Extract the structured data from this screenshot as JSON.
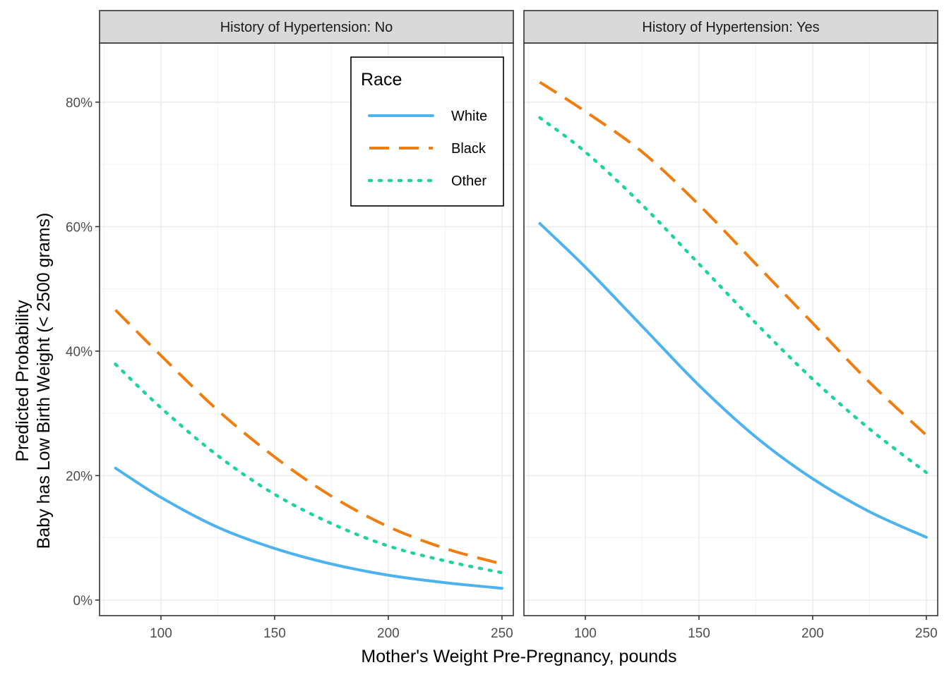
{
  "chart_data": {
    "type": "line",
    "xlabel": "Mother's Weight Pre-Pregnancy, pounds",
    "ylabel_lines": [
      "Predicted Probability",
      "Baby has Low Birth Weight (< 2500 grams)"
    ],
    "xlim": [
      73,
      255
    ],
    "ylim": [
      -0.025,
      0.895
    ],
    "x_ticks": [
      100,
      150,
      200,
      250
    ],
    "x_minor": [
      75,
      125,
      175,
      225
    ],
    "y_ticks": [
      0,
      0.2,
      0.4,
      0.6,
      0.8
    ],
    "y_tick_labels": [
      "0%",
      "20%",
      "40%",
      "60%",
      "80%"
    ],
    "y_minor": [
      0.1,
      0.3,
      0.5,
      0.7
    ],
    "x": [
      80,
      100,
      125,
      150,
      175,
      200,
      225,
      250
    ],
    "legend": {
      "title": "Race",
      "position": "top-right of left panel",
      "entries": [
        "White",
        "Black",
        "Other"
      ]
    },
    "series_styles": [
      {
        "name": "White",
        "color": "#4db3f0",
        "dash": "none"
      },
      {
        "name": "Black",
        "color": "#f07d0e",
        "dash": "long-dash"
      },
      {
        "name": "Other",
        "color": "#1fd3a0",
        "dash": "dotted"
      }
    ],
    "panels": [
      {
        "strip": "History of Hypertension: No",
        "series": [
          {
            "name": "White",
            "values": [
              0.212,
              0.165,
              0.117,
              0.083,
              0.058,
              0.04,
              0.028,
              0.019
            ]
          },
          {
            "name": "Black",
            "values": [
              0.466,
              0.393,
              0.305,
              0.23,
              0.167,
              0.118,
              0.083,
              0.058
            ]
          },
          {
            "name": "Other",
            "values": [
              0.379,
              0.309,
              0.232,
              0.17,
              0.123,
              0.087,
              0.063,
              0.044
            ]
          }
        ]
      },
      {
        "strip": "History of Hypertension: Yes",
        "series": [
          {
            "name": "White",
            "values": [
              0.605,
              0.535,
              0.44,
              0.345,
              0.262,
              0.195,
              0.142,
              0.101
            ]
          },
          {
            "name": "Black",
            "values": [
              0.832,
              0.785,
              0.72,
              0.635,
              0.54,
              0.445,
              0.35,
              0.265
            ]
          },
          {
            "name": "Other",
            "values": [
              0.775,
              0.72,
              0.635,
              0.54,
              0.445,
              0.355,
              0.275,
              0.205
            ]
          }
        ]
      }
    ]
  }
}
